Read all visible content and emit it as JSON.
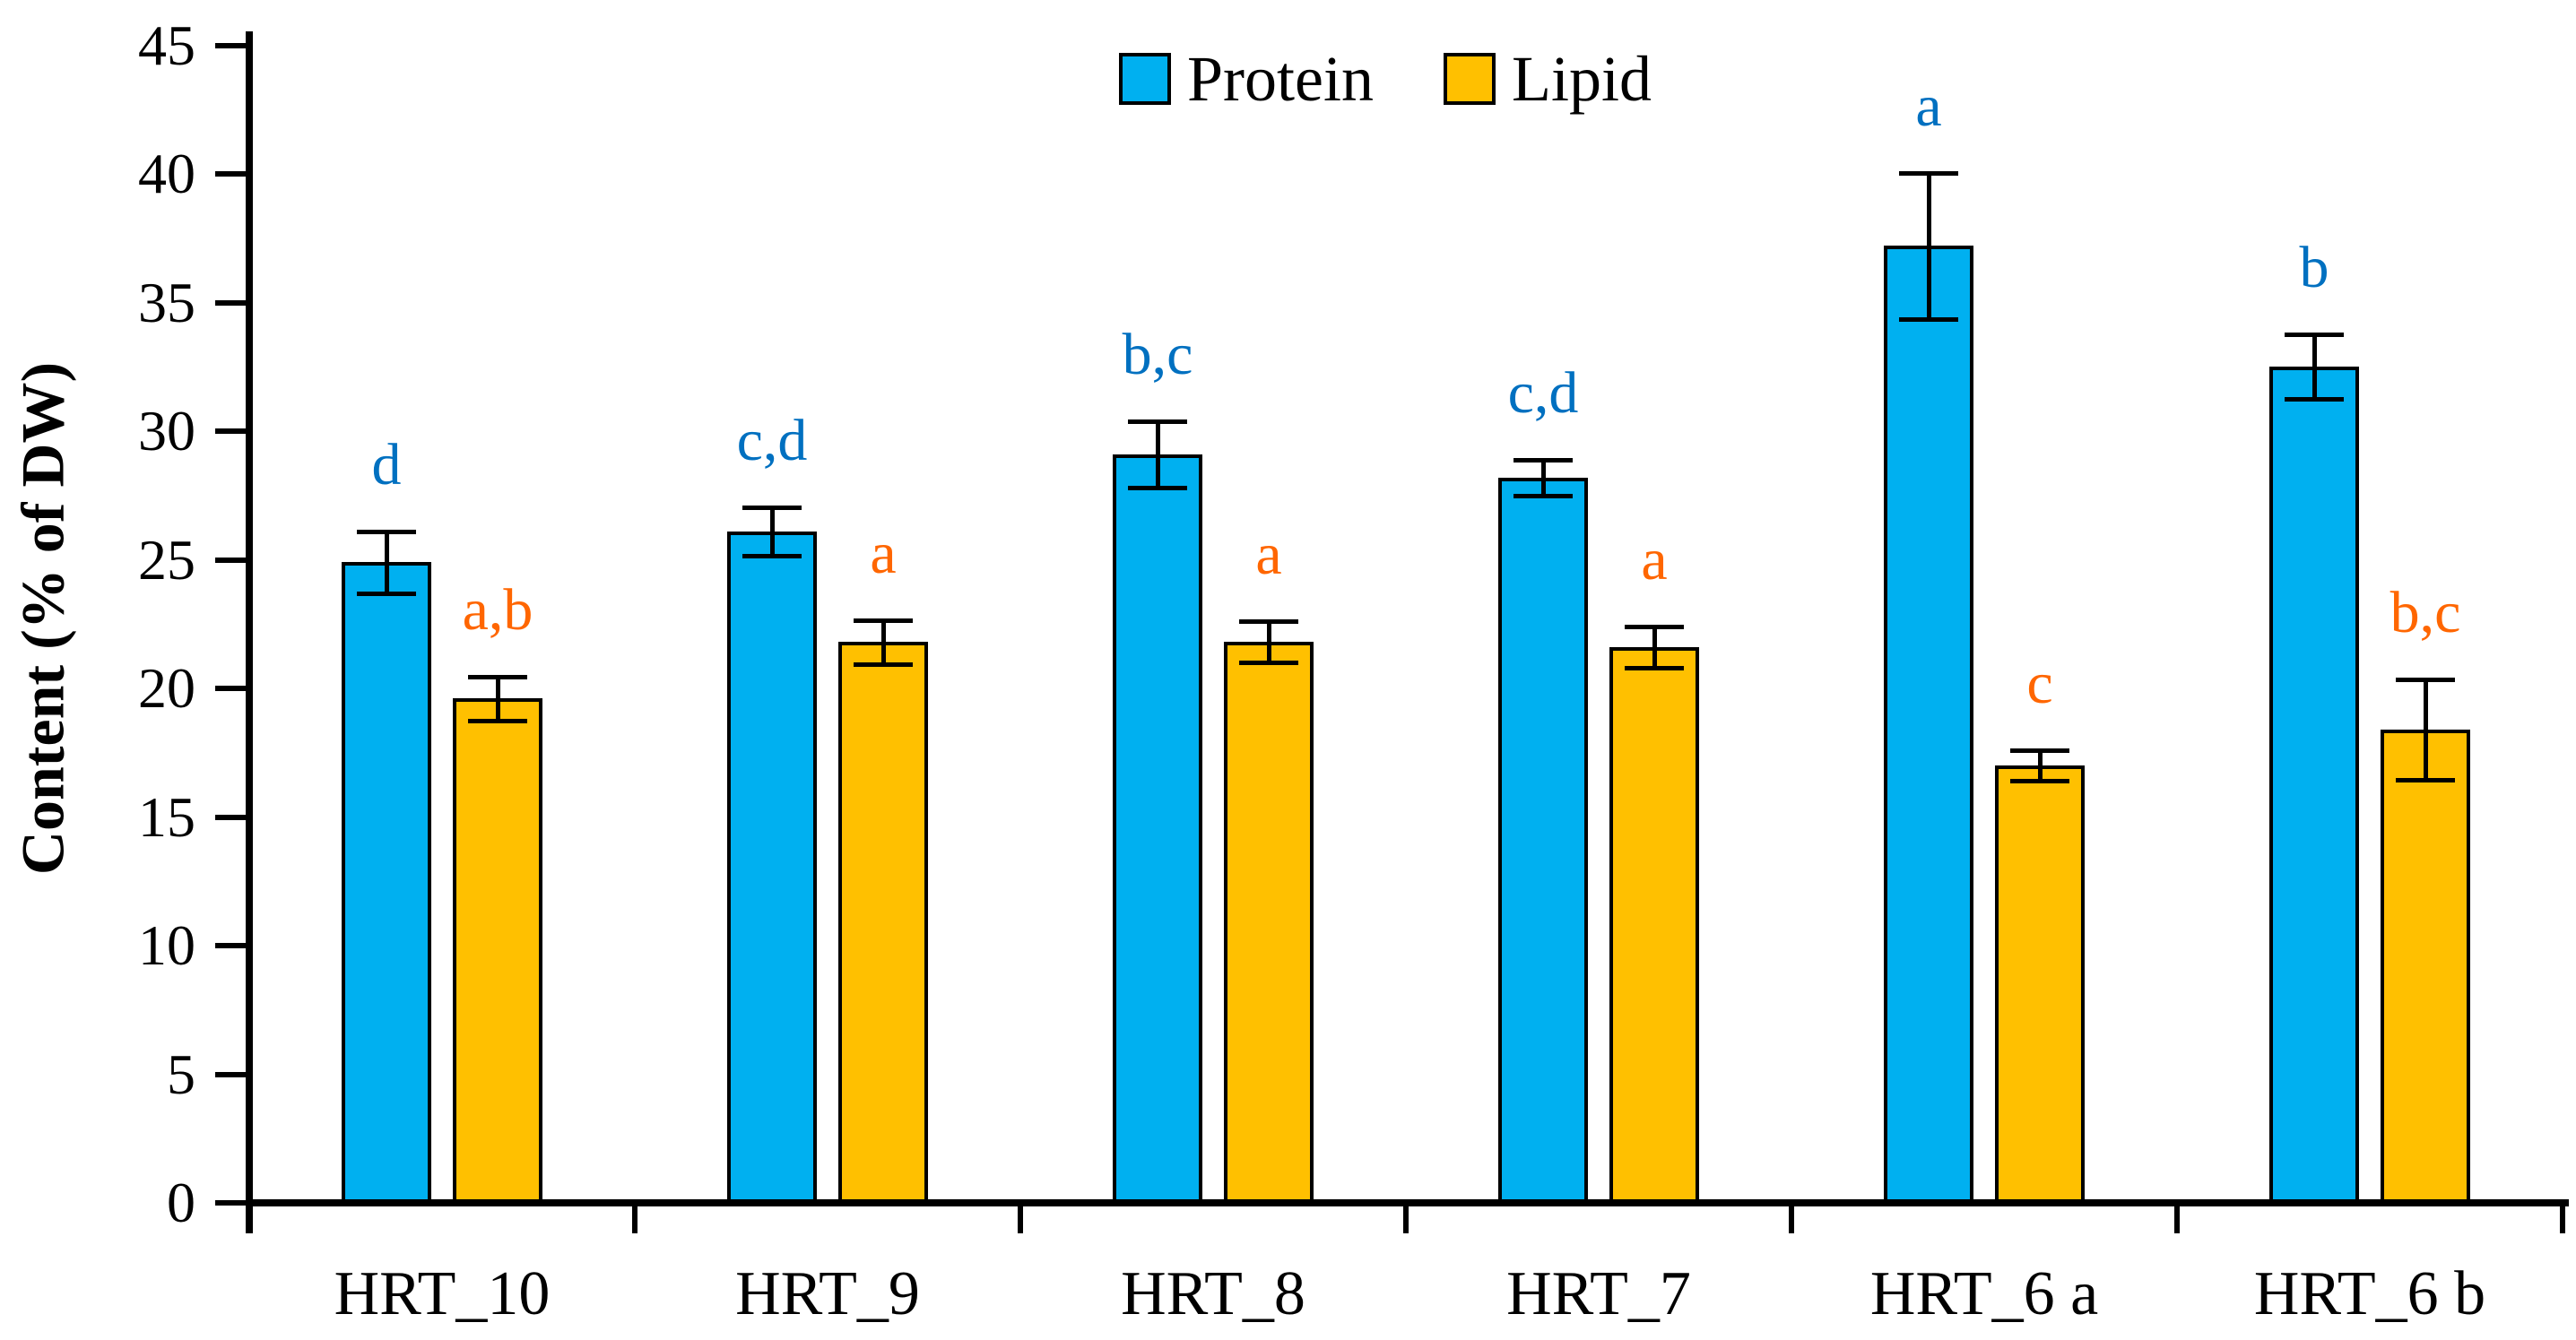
{
  "chart_data": {
    "type": "bar",
    "title": "",
    "ylabel": "Content (% of DW)",
    "xlabel": "",
    "ylim": [
      0,
      45
    ],
    "ytick_step": 5,
    "yticks": [
      0,
      5,
      10,
      15,
      20,
      25,
      30,
      35,
      40,
      45
    ],
    "categories": [
      "HRT_10",
      "HRT_9",
      "HRT_8",
      "HRT_7",
      "HRT_6 a",
      "HRT_6 b"
    ],
    "grid": false,
    "legend_position": "top-center",
    "error_bars": true,
    "axis_color": "#000000",
    "series": [
      {
        "name": "Protein",
        "color": "#00B0F0",
        "letter_color": "#0070C0",
        "values": [
          24.9,
          26.1,
          29.1,
          28.2,
          37.2,
          32.5
        ],
        "errors": [
          1.2,
          0.95,
          1.3,
          0.7,
          2.85,
          1.25
        ],
        "sig_letters": [
          "d",
          "c,d",
          "b,c",
          "c,d",
          "a",
          "b"
        ]
      },
      {
        "name": "Lipid",
        "color": "#FFC000",
        "letter_color": "#FF6600",
        "values": [
          19.6,
          21.8,
          21.8,
          21.6,
          17.0,
          18.4
        ],
        "errors": [
          0.85,
          0.85,
          0.8,
          0.8,
          0.6,
          1.95
        ],
        "sig_letters": [
          "a,b",
          "a",
          "a",
          "a",
          "c",
          "b,c"
        ]
      }
    ]
  }
}
